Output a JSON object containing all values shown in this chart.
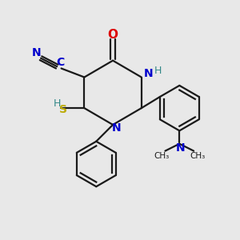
{
  "background_color": "#e8e8e8",
  "bond_color": "#1a1a1a",
  "atom_colors": {
    "N": "#0000cc",
    "O": "#dd0000",
    "S": "#bbaa00",
    "C_cyan": "#0000cc",
    "H_teal": "#338888",
    "N_blue": "#0000cc"
  },
  "figsize": [
    3.0,
    3.0
  ],
  "dpi": 100,
  "xlim": [
    0,
    10
  ],
  "ylim": [
    0,
    10
  ]
}
